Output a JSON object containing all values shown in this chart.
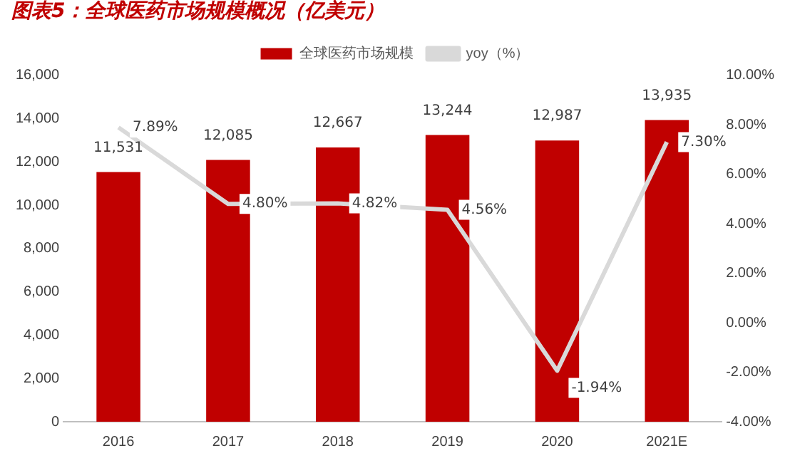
{
  "chart_data": {
    "type": "bar",
    "title": "图表5：全球医药市场规模概况（亿美元）",
    "categories": [
      "2016",
      "2017",
      "2018",
      "2019",
      "2020",
      "2021E"
    ],
    "series": [
      {
        "name": "全球医药市场规模",
        "color": "#c00000",
        "values": [
          11531,
          12085,
          12667,
          13244,
          12987,
          13935
        ],
        "value_labels": [
          "11,531",
          "12,085",
          "12,667",
          "13,244",
          "12,987",
          "13,935"
        ]
      },
      {
        "name": "yoy（%）",
        "type": "line",
        "axis": "y2",
        "color": "#d9d9d9",
        "marker": "none",
        "values": [
          7.89,
          4.8,
          4.82,
          4.56,
          -1.94,
          7.3
        ],
        "value_labels": [
          "7.89%",
          "4.80%",
          "4.82%",
          "4.56%",
          "-1.94%",
          "7.30%"
        ]
      }
    ],
    "ylim": [
      0,
      16000
    ],
    "yticks": [
      0,
      {
        "value": 2000,
        "label": "2,000"
      },
      {
        "value": 4000,
        "label": "4,000"
      },
      {
        "value": 6000,
        "label": "6,000"
      },
      {
        "value": 8000,
        "label": "8,000"
      },
      {
        "value": 10000,
        "label": "10,000"
      },
      {
        "value": 12000,
        "label": "12,000"
      },
      {
        "value": 14000,
        "label": "14,000"
      },
      {
        "value": 16000,
        "label": "16,000"
      }
    ],
    "y2lim": [
      -4,
      10
    ],
    "y2ticks": [
      {
        "value": -4,
        "label": "-4.00%"
      },
      {
        "value": -2,
        "label": "-2.00%"
      },
      {
        "value": 0,
        "label": "0.00%"
      },
      {
        "value": 2,
        "label": "2.00%"
      },
      {
        "value": 4,
        "label": "4.00%"
      },
      {
        "value": 6,
        "label": "6.00%"
      },
      {
        "value": 8,
        "label": "8.00%"
      },
      {
        "value": 10,
        "label": "10.00%"
      }
    ],
    "grid": false,
    "legend": "top"
  }
}
